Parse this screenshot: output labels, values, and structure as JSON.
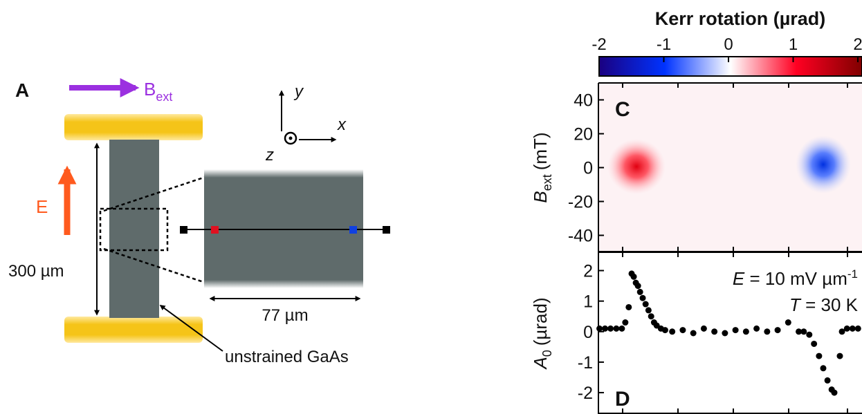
{
  "diagram": {
    "panel": "A",
    "field": "B",
    "field_sub": "ext",
    "efield": "E",
    "axes": {
      "x": "x",
      "y": "y",
      "z": "z"
    },
    "length": "300 µm",
    "width": "77 µm",
    "material": "unstrained GaAs"
  },
  "colorbar": {
    "title": "Kerr rotation (µrad)",
    "lim": [
      -2,
      2
    ],
    "ticks": [
      -2,
      -1,
      0,
      1,
      2
    ],
    "colors": [
      "#1a0080",
      "#0033ff",
      "#ffffff",
      "#ff0022",
      "#800000"
    ]
  },
  "chart_data": [
    {
      "type": "heatmap",
      "label": "C",
      "ylabel": "B",
      "ylabel_sub": "ext",
      "ylabel_unit": "(mT)",
      "ylim": [
        -50,
        50
      ],
      "yticks": [
        -40,
        -20,
        0,
        20,
        40
      ]
    },
    {
      "type": "scatter",
      "label": "D",
      "ylabel": "A",
      "ylabel_sub": "0",
      "ylabel_unit": "(µrad)",
      "annotations": [
        {
          "var": "E",
          "text": " = 10 mV µm",
          "sup": "-1"
        },
        {
          "var": "T",
          "text": " = 30 K"
        }
      ],
      "xlim": [
        -50,
        50
      ],
      "ylim": [
        -2.7,
        2.6
      ],
      "yticks": [
        -2,
        -1,
        0,
        1,
        2
      ],
      "color": "#000000",
      "x": [
        -49.6,
        -47.5,
        -45.4,
        -43.2,
        -41.1,
        -39.8,
        -38.5,
        -37.4,
        -36.6,
        -35.8,
        -35.0,
        -34.2,
        -33.2,
        -32.1,
        -31.0,
        -30.0,
        -28.9,
        -27.9,
        -26.3,
        -24.7,
        -22,
        -18,
        -14,
        -10,
        -6,
        -2,
        2,
        6,
        10,
        14,
        18,
        22,
        26,
        27.9,
        30.0,
        31.8,
        33.7,
        35.3,
        36.9,
        38.5,
        39.5,
        41.6,
        42.4,
        44.3,
        46.4,
        48.5
      ],
      "values": [
        0.1,
        0.1,
        0.1,
        0.1,
        0.1,
        0.3,
        0.8,
        1.9,
        1.8,
        1.6,
        1.5,
        1.3,
        1.1,
        0.9,
        0.7,
        0.5,
        0.3,
        0.2,
        0.1,
        0.05,
        0,
        0.05,
        -0.05,
        0.1,
        0,
        -0.05,
        0.05,
        0,
        0.1,
        0,
        0.05,
        0.3,
        0,
        0,
        -0.1,
        -0.4,
        -0.8,
        -1.2,
        -1.6,
        -1.9,
        -2.0,
        -0.8,
        0,
        0.1,
        0.1,
        0.1
      ]
    }
  ]
}
